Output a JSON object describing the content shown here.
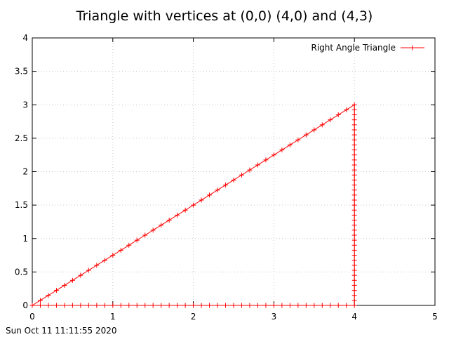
{
  "chart_data": {
    "type": "line",
    "title": "Triangle with vertices at (0,0) (4,0) and (4,3)",
    "xlabel": "",
    "ylabel": "",
    "xlim": [
      0,
      5
    ],
    "ylim": [
      0,
      4
    ],
    "x_ticks": [
      "0",
      "1",
      "2",
      "3",
      "4",
      "5"
    ],
    "y_ticks": [
      "0",
      "0.5",
      "1",
      "1.5",
      "2",
      "2.5",
      "3",
      "3.5",
      "4"
    ],
    "x_tick_values": [
      0,
      1,
      2,
      3,
      4,
      5
    ],
    "y_tick_values": [
      0,
      0.5,
      1,
      1.5,
      2,
      2.5,
      3,
      3.5,
      4
    ],
    "grid": true,
    "legend_position": "top-right",
    "series": [
      {
        "name": "Right Angle Triangle",
        "color": "#ff0000",
        "marker": "plus",
        "vertices": [
          [
            0,
            0
          ],
          [
            4,
            0
          ],
          [
            4,
            3
          ],
          [
            0,
            0
          ]
        ],
        "points_per_edge": 40
      }
    ]
  },
  "timestamp": "Sun Oct 11 11:11:55 2020"
}
